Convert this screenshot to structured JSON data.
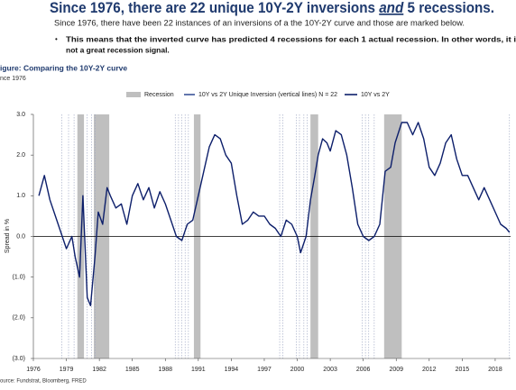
{
  "header": {
    "title_parts": [
      "Since 1976, there are 22 unique 10Y-2Y inversions ",
      "and",
      " 5 recessions."
    ],
    "subtitle": "Since 1976, there have been 22 instances of an inversions of a the 10Y-2Y curve and those are marked below.",
    "bullet_lines": [
      "This means that the inverted curve has predicted 4 recessions for each 1 actual recession.  In other words, it i",
      "not a great recession signal."
    ]
  },
  "chart_data": {
    "type": "line",
    "title": "igure: Comparing the 10Y-2Y curve",
    "subtitle": "nce 1976",
    "y_label": "Spread in %",
    "source": "ource: Fundstrat, Bloomberg, FRED",
    "xlim": [
      1976,
      2019.4
    ],
    "xticks": [
      1976,
      1979,
      1982,
      1985,
      1988,
      1991,
      1994,
      1997,
      2000,
      2003,
      2006,
      2009,
      2012,
      2015,
      2018
    ],
    "ylim": [
      -3,
      3
    ],
    "yticks": [
      {
        "value": 3,
        "label": "3.0"
      },
      {
        "value": 2,
        "label": "2.0"
      },
      {
        "value": 1,
        "label": "1.0"
      },
      {
        "value": 0,
        "label": "0.0"
      },
      {
        "value": -1,
        "label": "(1.0)"
      },
      {
        "value": -2,
        "label": "(2.0)"
      },
      {
        "value": -3,
        "label": "(3.0)"
      }
    ],
    "negative_tick_color": "#c00000",
    "recessions": {
      "name": "Recession",
      "color": "#bfbfbf",
      "ranges": [
        [
          1980.0,
          1980.6
        ],
        [
          1981.5,
          1982.9
        ],
        [
          1990.6,
          1991.2
        ],
        [
          2001.2,
          2001.9
        ],
        [
          2007.9,
          2009.5
        ]
      ]
    },
    "inversions": {
      "name": "10Y vs 2Y Unique Inversion (vertical lines) N = 22",
      "color": "#1f3a8a",
      "x": [
        1978.6,
        1979.2,
        1979.7,
        1980.9,
        1981.3,
        1981.6,
        1988.9,
        1989.2,
        1989.5,
        1989.8,
        1990.1,
        1998.4,
        1998.7,
        1999.9,
        2000.2,
        2000.6,
        2000.9,
        2005.9,
        2006.2,
        2006.5,
        2007.0,
        2019.3
      ]
    },
    "series": [
      {
        "name": "10Y vs 2Y",
        "color": "#0d1f6b",
        "x": [
          1976.5,
          1977.0,
          1977.5,
          1978.0,
          1978.5,
          1979.0,
          1979.5,
          1979.8,
          1980.2,
          1980.5,
          1980.9,
          1981.2,
          1981.6,
          1981.9,
          1982.3,
          1982.7,
          1983.0,
          1983.5,
          1984.0,
          1984.5,
          1985.0,
          1985.5,
          1986.0,
          1986.5,
          1987.0,
          1987.5,
          1988.0,
          1988.5,
          1989.0,
          1989.5,
          1990.0,
          1990.5,
          1991.0,
          1991.5,
          1992.0,
          1992.5,
          1993.0,
          1993.5,
          1994.0,
          1994.5,
          1995.0,
          1995.5,
          1996.0,
          1996.5,
          1997.0,
          1997.5,
          1998.0,
          1998.5,
          1999.0,
          1999.5,
          2000.0,
          2000.3,
          2000.8,
          2001.2,
          2001.6,
          2001.9,
          2002.3,
          2002.7,
          2003.0,
          2003.5,
          2004.0,
          2004.5,
          2005.0,
          2005.5,
          2006.0,
          2006.5,
          2007.0,
          2007.5,
          2008.0,
          2008.5,
          2008.9,
          2009.5,
          2010.0,
          2010.5,
          2011.0,
          2011.5,
          2012.0,
          2012.5,
          2013.0,
          2013.5,
          2014.0,
          2014.5,
          2015.0,
          2015.5,
          2016.0,
          2016.5,
          2017.0,
          2017.5,
          2018.0,
          2018.5,
          2019.0,
          2019.3
        ],
        "values": [
          1.0,
          1.5,
          0.9,
          0.5,
          0.1,
          -0.3,
          0.0,
          -0.5,
          -1.0,
          1.0,
          -1.5,
          -1.7,
          -0.5,
          0.6,
          0.3,
          1.2,
          1.0,
          0.7,
          0.8,
          0.3,
          1.0,
          1.3,
          0.9,
          1.2,
          0.7,
          1.1,
          0.8,
          0.4,
          0.0,
          -0.1,
          0.3,
          0.4,
          1.0,
          1.6,
          2.2,
          2.5,
          2.4,
          2.0,
          1.8,
          1.0,
          0.3,
          0.4,
          0.6,
          0.5,
          0.5,
          0.3,
          0.2,
          0.0,
          0.4,
          0.3,
          0.0,
          -0.4,
          0.0,
          0.9,
          1.5,
          2.0,
          2.4,
          2.3,
          2.1,
          2.6,
          2.5,
          2.0,
          1.2,
          0.3,
          0.0,
          -0.1,
          0.0,
          0.3,
          1.6,
          1.7,
          2.3,
          2.8,
          2.8,
          2.5,
          2.8,
          2.4,
          1.7,
          1.5,
          1.8,
          2.3,
          2.5,
          1.9,
          1.5,
          1.5,
          1.2,
          0.9,
          1.2,
          0.9,
          0.6,
          0.3,
          0.2,
          0.1
        ]
      }
    ]
  }
}
